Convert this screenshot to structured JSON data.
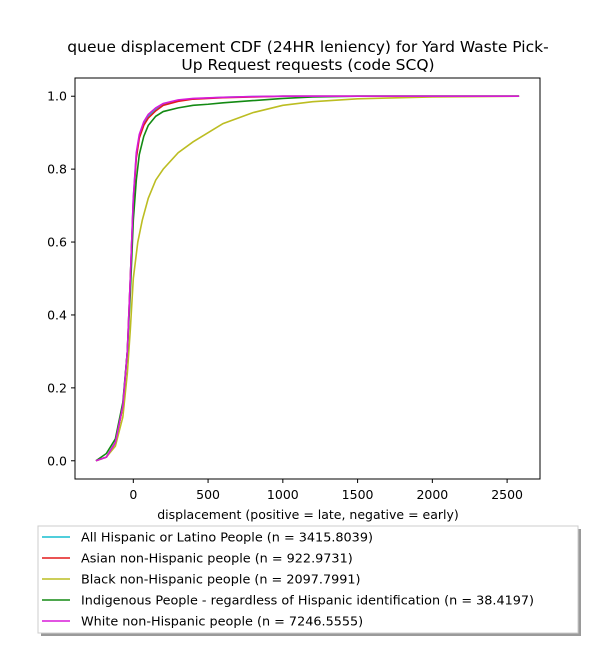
{
  "chart_data": {
    "type": "line",
    "title_lines": [
      "queue displacement CDF (24HR leniency) for Yard Waste Pick-",
      "Up Request  requests (code SCQ)"
    ],
    "xlabel": "displacement (positive = late, negative = early)",
    "ylabel": "",
    "xlim": [
      -390,
      2720
    ],
    "ylim": [
      -0.05,
      1.05
    ],
    "xticks": [
      0,
      500,
      1000,
      1500,
      2000,
      2500
    ],
    "yticks": [
      0.0,
      0.2,
      0.4,
      0.6,
      0.8,
      1.0
    ],
    "xtick_labels": [
      "0",
      "500",
      "1000",
      "1500",
      "2000",
      "2500"
    ],
    "ytick_labels": [
      "0.0",
      "0.2",
      "0.4",
      "0.6",
      "0.8",
      "1.0"
    ],
    "grid": false,
    "legend_position": "below",
    "series": [
      {
        "name": "All Hispanic or Latino People (n = 3415.8039)",
        "color": "#17becf",
        "x": [
          -250,
          -180,
          -120,
          -70,
          -40,
          -20,
          0,
          20,
          40,
          70,
          100,
          150,
          200,
          300,
          400,
          600,
          800,
          1000,
          1500,
          2000,
          2580
        ],
        "y": [
          0.0,
          0.01,
          0.05,
          0.15,
          0.3,
          0.5,
          0.72,
          0.84,
          0.89,
          0.925,
          0.945,
          0.965,
          0.978,
          0.988,
          0.993,
          0.997,
          0.999,
          1.0,
          1.0,
          1.0,
          1.0
        ]
      },
      {
        "name": "Asian non-Hispanic people (n = 922.9731)",
        "color": "#e41a1c",
        "x": [
          -250,
          -180,
          -120,
          -70,
          -40,
          -20,
          0,
          20,
          40,
          70,
          100,
          150,
          200,
          300,
          400,
          600,
          800,
          1000,
          1500,
          2000,
          2580
        ],
        "y": [
          0.0,
          0.01,
          0.05,
          0.15,
          0.3,
          0.5,
          0.71,
          0.83,
          0.885,
          0.92,
          0.94,
          0.96,
          0.975,
          0.986,
          0.992,
          0.996,
          0.998,
          1.0,
          1.0,
          1.0,
          1.0
        ]
      },
      {
        "name": "Black non-Hispanic people (n = 2097.7991)",
        "color": "#bcbd22",
        "x": [
          -250,
          -180,
          -120,
          -70,
          -40,
          -20,
          0,
          30,
          60,
          100,
          150,
          200,
          300,
          400,
          500,
          600,
          800,
          1000,
          1200,
          1500,
          2000,
          2580
        ],
        "y": [
          0.0,
          0.01,
          0.04,
          0.12,
          0.24,
          0.36,
          0.5,
          0.6,
          0.66,
          0.72,
          0.77,
          0.8,
          0.845,
          0.875,
          0.9,
          0.925,
          0.955,
          0.975,
          0.985,
          0.993,
          0.998,
          1.0
        ]
      },
      {
        "name": "Indigenous People - regardless of Hispanic identification (n = 38.4197)",
        "color": "#138a13",
        "x": [
          -250,
          -180,
          -120,
          -70,
          -40,
          -20,
          0,
          20,
          40,
          70,
          100,
          150,
          200,
          300,
          400,
          500,
          600,
          800,
          1000,
          1200,
          1500,
          2000,
          2580
        ],
        "y": [
          0.0,
          0.02,
          0.06,
          0.16,
          0.3,
          0.46,
          0.66,
          0.77,
          0.84,
          0.89,
          0.92,
          0.945,
          0.958,
          0.968,
          0.975,
          0.978,
          0.982,
          0.988,
          0.994,
          0.998,
          1.0,
          1.0,
          1.0
        ]
      },
      {
        "name": "White non-Hispanic people (n = 7246.5555)",
        "color": "#d81ad8",
        "x": [
          -250,
          -180,
          -120,
          -70,
          -40,
          -20,
          0,
          20,
          40,
          70,
          100,
          150,
          200,
          300,
          400,
          600,
          800,
          1000,
          1500,
          2000,
          2580
        ],
        "y": [
          0.0,
          0.01,
          0.05,
          0.15,
          0.3,
          0.5,
          0.72,
          0.845,
          0.895,
          0.93,
          0.95,
          0.968,
          0.98,
          0.99,
          0.994,
          0.997,
          0.999,
          1.0,
          1.0,
          1.0,
          1.0
        ]
      }
    ]
  }
}
